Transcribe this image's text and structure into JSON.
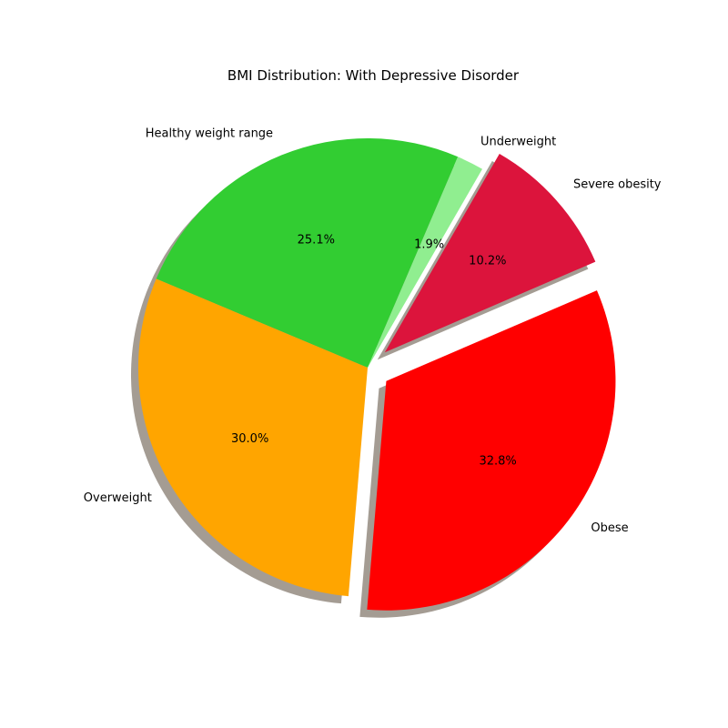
{
  "chart_data": {
    "type": "pie",
    "title": "BMI Distribution: With Depressive Disorder",
    "slices": [
      {
        "label": "Underweight",
        "value": 1.9,
        "pct_label": "1.9%",
        "color": "#90EE90",
        "exploded": false
      },
      {
        "label": "Healthy weight range",
        "value": 25.1,
        "pct_label": "25.1%",
        "color": "#32CD32",
        "exploded": false
      },
      {
        "label": "Overweight",
        "value": 30.0,
        "pct_label": "30.0%",
        "color": "#FFA500",
        "exploded": false
      },
      {
        "label": "Obese",
        "value": 32.8,
        "pct_label": "32.8%",
        "color": "#FF0000",
        "exploded": true
      },
      {
        "label": "Severe obesity",
        "value": 10.2,
        "pct_label": "10.2%",
        "color": "#DC143C",
        "exploded": true
      }
    ],
    "shadow": true,
    "legend": "none"
  }
}
